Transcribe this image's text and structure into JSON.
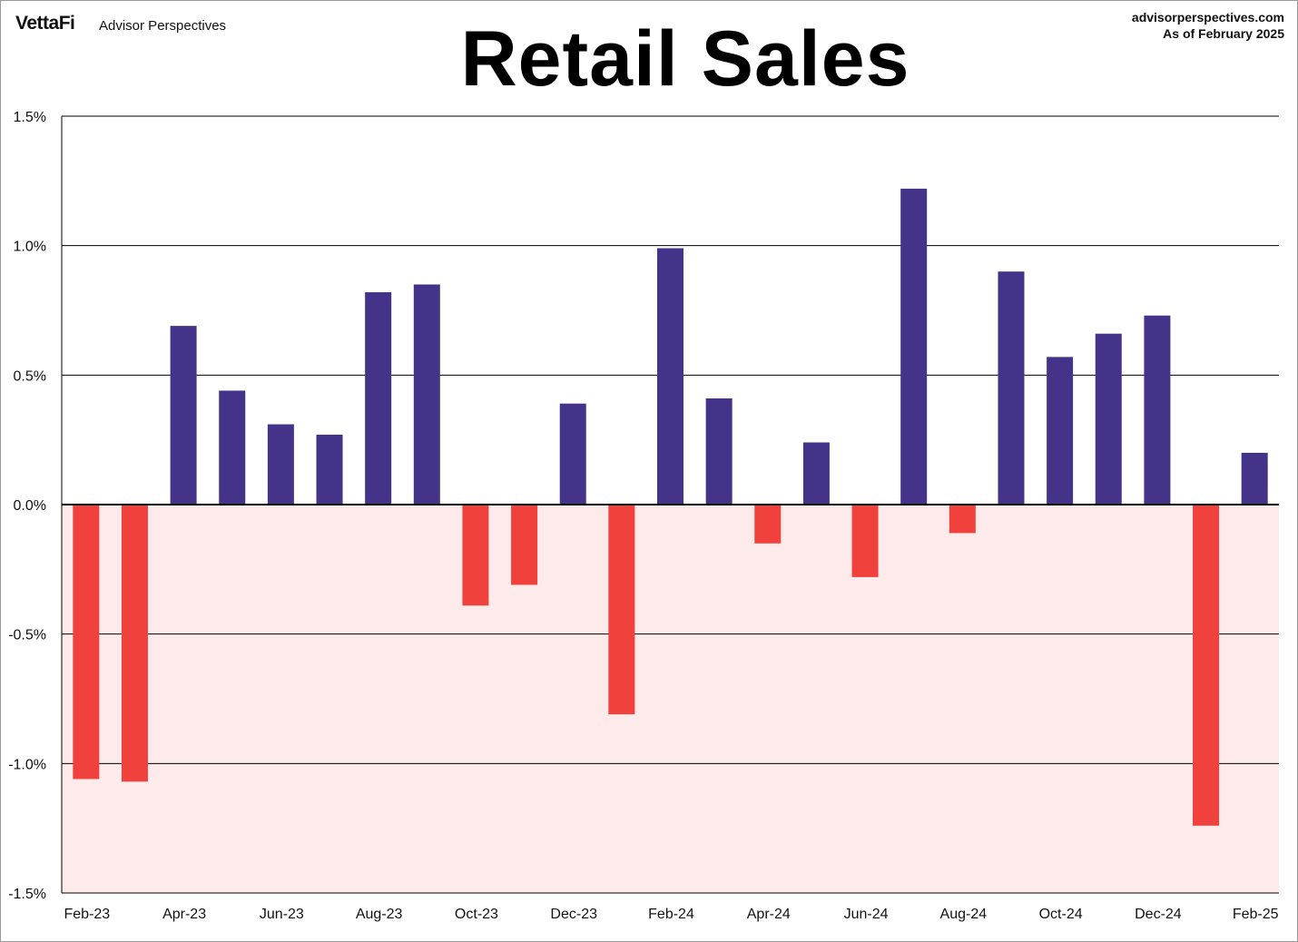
{
  "header": {
    "logo": "VettaFi",
    "publisher": "Advisor Perspectives",
    "site": "advisorperspectives.com",
    "as_of": "As of February 2025"
  },
  "colors": {
    "positive": "#45338a",
    "negative": "#f0413d",
    "negative_region": "#fdeaea",
    "grid": "#000000"
  },
  "chart_data": {
    "type": "bar",
    "title": "Retail Sales",
    "xlabel": "",
    "ylabel": "",
    "ylim": [
      -1.5,
      1.5
    ],
    "yticks": [
      1.5,
      1.0,
      0.5,
      0.0,
      -0.5,
      -1.0,
      -1.5
    ],
    "ytick_labels": [
      "1.5%",
      "1.0%",
      "0.5%",
      "0.0%",
      "-0.5%",
      "-1.0%",
      "-1.5%"
    ],
    "grid": true,
    "negative_region_shaded": true,
    "categories": [
      "Feb-23",
      "Mar-23",
      "Apr-23",
      "May-23",
      "Jun-23",
      "Jul-23",
      "Aug-23",
      "Sep-23",
      "Oct-23",
      "Nov-23",
      "Dec-23",
      "Jan-24",
      "Feb-24",
      "Mar-24",
      "Apr-24",
      "May-24",
      "Jun-24",
      "Jul-24",
      "Aug-24",
      "Sep-24",
      "Oct-24",
      "Nov-24",
      "Dec-24",
      "Jan-25",
      "Feb-25"
    ],
    "x_tick_labels": [
      "Feb-23",
      "",
      "Apr-23",
      "",
      "Jun-23",
      "",
      "Aug-23",
      "",
      "Oct-23",
      "",
      "Dec-23",
      "",
      "Feb-24",
      "",
      "Apr-24",
      "",
      "Jun-24",
      "",
      "Aug-24",
      "",
      "Oct-24",
      "",
      "Dec-24",
      "",
      "Feb-25"
    ],
    "values": [
      -1.06,
      -1.07,
      0.69,
      0.44,
      0.31,
      0.27,
      0.82,
      0.85,
      -0.39,
      -0.31,
      0.39,
      -0.81,
      0.99,
      0.41,
      -0.15,
      0.24,
      -0.28,
      1.22,
      -0.11,
      0.9,
      0.57,
      0.66,
      0.73,
      -1.24,
      0.2
    ]
  }
}
